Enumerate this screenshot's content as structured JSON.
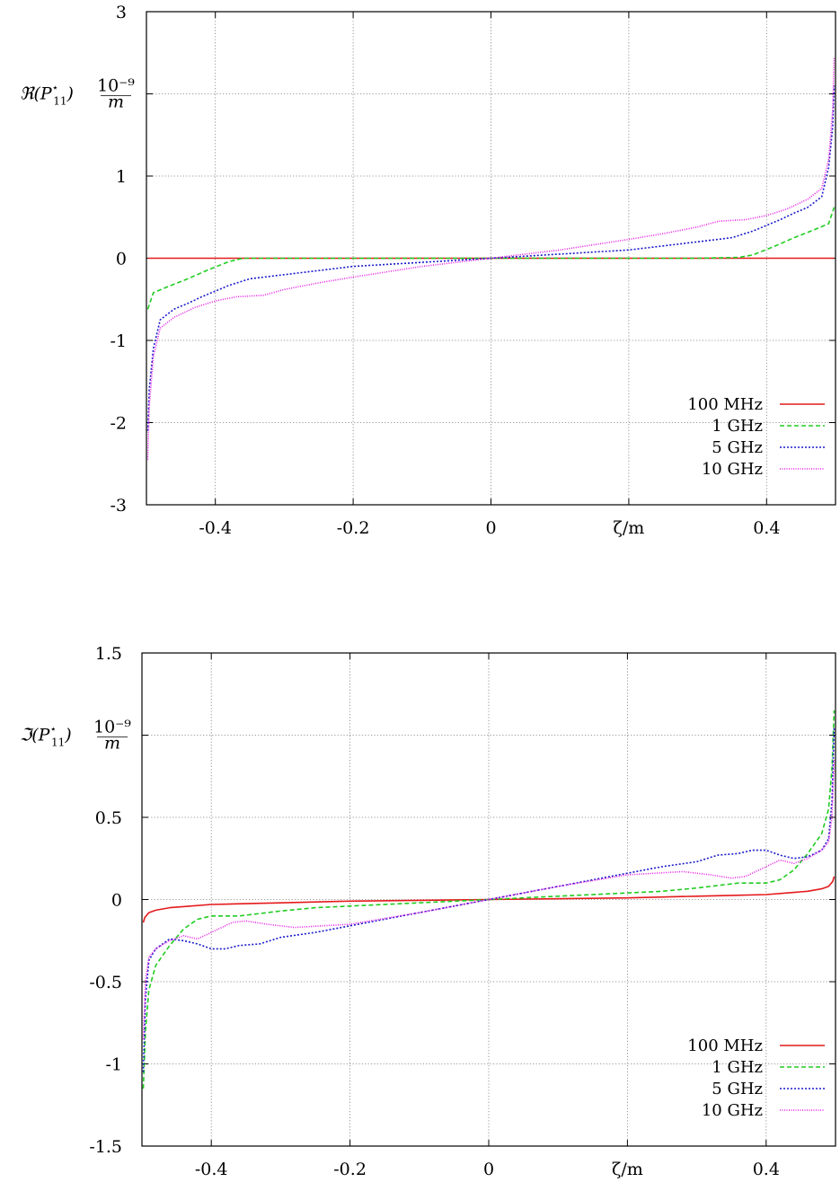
{
  "chart_data": [
    {
      "type": "line",
      "ylabel_main": "ℜ(P",
      "ylabel_sub": "11",
      "ylabel_sup": "⋆",
      "ylabel_close": ")",
      "ylabel_num": "10⁻⁹",
      "ylabel_den": "m",
      "xlim": [
        -0.5,
        0.5
      ],
      "ylim": [
        -3,
        3
      ],
      "grid": true,
      "legend_position": "bottom-right",
      "x_ticks": [
        {
          "value": -0.4,
          "label": "-0.4"
        },
        {
          "value": -0.2,
          "label": "-0.2"
        },
        {
          "value": 0,
          "label": "0"
        },
        {
          "value": 0.2,
          "label": "ζ/m"
        },
        {
          "value": 0.4,
          "label": "0.4"
        }
      ],
      "y_ticks": [
        {
          "value": -3,
          "label": "-3"
        },
        {
          "value": -2,
          "label": "-2"
        },
        {
          "value": -1,
          "label": "-1"
        },
        {
          "value": 0,
          "label": "0"
        },
        {
          "value": 1,
          "label": "1"
        },
        {
          "value": 2,
          "label": ""
        },
        {
          "value": 3,
          "label": "3"
        }
      ],
      "series": [
        {
          "name": "100 MHz",
          "color": "#e41a1c",
          "dash": "",
          "x": [
            -0.498,
            0,
            0.498
          ],
          "y": [
            0,
            0,
            0
          ]
        },
        {
          "name": "1 GHz",
          "color": "#22cc22",
          "dash": "5 3",
          "x": [
            -0.498,
            -0.49,
            -0.47,
            -0.44,
            -0.41,
            -0.38,
            -0.36,
            -0.3,
            -0.2,
            0,
            0.2,
            0.3,
            0.36,
            0.38,
            0.41,
            0.44,
            0.47,
            0.49,
            0.498
          ],
          "y": [
            -0.62,
            -0.42,
            -0.35,
            -0.25,
            -0.14,
            -0.04,
            0,
            0,
            0,
            0,
            0,
            0,
            0.01,
            0.04,
            0.14,
            0.25,
            0.35,
            0.42,
            0.62
          ]
        },
        {
          "name": "5 GHz",
          "color": "#1a1acc",
          "dash": "2 2",
          "x": [
            -0.498,
            -0.496,
            -0.49,
            -0.48,
            -0.46,
            -0.44,
            -0.42,
            -0.4,
            -0.38,
            -0.35,
            -0.3,
            -0.25,
            -0.2,
            -0.1,
            0,
            0.1,
            0.2,
            0.25,
            0.3,
            0.35,
            0.38,
            0.4,
            0.42,
            0.44,
            0.46,
            0.48,
            0.49,
            0.496,
            0.498
          ],
          "y": [
            -2.1,
            -1.6,
            -1.1,
            -0.75,
            -0.62,
            -0.55,
            -0.47,
            -0.4,
            -0.33,
            -0.25,
            -0.2,
            -0.15,
            -0.1,
            -0.05,
            0,
            0.05,
            0.1,
            0.15,
            0.2,
            0.25,
            0.33,
            0.4,
            0.47,
            0.55,
            0.62,
            0.75,
            1.1,
            1.6,
            2.1
          ]
        },
        {
          "name": "10 GHz",
          "color": "#e61ee6",
          "dash": "1 1.5",
          "x": [
            -0.498,
            -0.496,
            -0.49,
            -0.48,
            -0.46,
            -0.43,
            -0.4,
            -0.37,
            -0.33,
            -0.3,
            -0.25,
            -0.2,
            -0.1,
            0,
            0.1,
            0.2,
            0.25,
            0.3,
            0.33,
            0.37,
            0.4,
            0.43,
            0.46,
            0.48,
            0.49,
            0.496,
            0.498
          ],
          "y": [
            -2.45,
            -1.8,
            -1.2,
            -0.85,
            -0.72,
            -0.6,
            -0.52,
            -0.47,
            -0.45,
            -0.38,
            -0.3,
            -0.23,
            -0.1,
            0,
            0.1,
            0.23,
            0.3,
            0.38,
            0.45,
            0.47,
            0.52,
            0.6,
            0.72,
            0.85,
            1.2,
            1.8,
            2.45
          ]
        }
      ]
    },
    {
      "type": "line",
      "ylabel_main": "ℑ(P",
      "ylabel_sub": "11",
      "ylabel_sup": "⋆",
      "ylabel_close": ")",
      "ylabel_num": "10⁻⁹",
      "ylabel_den": "m",
      "xlim": [
        -0.5,
        0.5
      ],
      "ylim": [
        -1.5,
        1.5
      ],
      "grid": true,
      "legend_position": "bottom-right",
      "x_ticks": [
        {
          "value": -0.4,
          "label": "-0.4"
        },
        {
          "value": -0.2,
          "label": "-0.2"
        },
        {
          "value": 0,
          "label": "0"
        },
        {
          "value": 0.2,
          "label": "ζ/m"
        },
        {
          "value": 0.4,
          "label": "0.4"
        }
      ],
      "y_ticks": [
        {
          "value": -1.5,
          "label": "-1.5"
        },
        {
          "value": -1,
          "label": "-1"
        },
        {
          "value": -0.5,
          "label": "-0.5"
        },
        {
          "value": 0,
          "label": "0"
        },
        {
          "value": 0.5,
          "label": "0.5"
        },
        {
          "value": 1,
          "label": ""
        },
        {
          "value": 1.5,
          "label": "1.5"
        }
      ],
      "series": [
        {
          "name": "100 MHz",
          "color": "#e41a1c",
          "dash": "",
          "x": [
            -0.498,
            -0.496,
            -0.49,
            -0.48,
            -0.46,
            -0.43,
            -0.4,
            -0.35,
            -0.3,
            -0.2,
            0,
            0.2,
            0.3,
            0.35,
            0.4,
            0.43,
            0.46,
            0.48,
            0.49,
            0.496,
            0.498
          ],
          "y": [
            -0.14,
            -0.11,
            -0.08,
            -0.065,
            -0.05,
            -0.04,
            -0.03,
            -0.025,
            -0.02,
            -0.01,
            0,
            0.01,
            0.02,
            0.025,
            0.03,
            0.04,
            0.05,
            0.065,
            0.08,
            0.11,
            0.14
          ]
        },
        {
          "name": "1 GHz",
          "color": "#22cc22",
          "dash": "5 3",
          "x": [
            -0.498,
            -0.495,
            -0.49,
            -0.48,
            -0.46,
            -0.44,
            -0.42,
            -0.4,
            -0.38,
            -0.36,
            -0.34,
            -0.3,
            -0.25,
            -0.2,
            -0.1,
            0,
            0.1,
            0.2,
            0.25,
            0.3,
            0.34,
            0.36,
            0.38,
            0.4,
            0.42,
            0.44,
            0.46,
            0.48,
            0.49,
            0.495,
            0.498
          ],
          "y": [
            -1.15,
            -0.8,
            -0.55,
            -0.4,
            -0.28,
            -0.18,
            -0.12,
            -0.1,
            -0.1,
            -0.1,
            -0.09,
            -0.07,
            -0.05,
            -0.04,
            -0.02,
            0,
            0.02,
            0.04,
            0.05,
            0.07,
            0.09,
            0.1,
            0.1,
            0.1,
            0.12,
            0.18,
            0.28,
            0.4,
            0.55,
            0.8,
            1.15
          ]
        },
        {
          "name": "5 GHz",
          "color": "#1a1acc",
          "dash": "2 2",
          "x": [
            -0.498,
            -0.495,
            -0.49,
            -0.48,
            -0.46,
            -0.44,
            -0.42,
            -0.4,
            -0.38,
            -0.36,
            -0.33,
            -0.3,
            -0.25,
            -0.2,
            -0.1,
            0,
            0.1,
            0.2,
            0.25,
            0.3,
            0.33,
            0.36,
            0.38,
            0.4,
            0.42,
            0.44,
            0.46,
            0.48,
            0.49,
            0.495,
            0.498
          ],
          "y": [
            -1.05,
            -0.6,
            -0.37,
            -0.3,
            -0.24,
            -0.25,
            -0.27,
            -0.3,
            -0.3,
            -0.28,
            -0.27,
            -0.23,
            -0.2,
            -0.16,
            -0.08,
            0,
            0.08,
            0.16,
            0.2,
            0.23,
            0.27,
            0.28,
            0.3,
            0.3,
            0.27,
            0.25,
            0.26,
            0.3,
            0.37,
            0.6,
            1.05
          ]
        },
        {
          "name": "10 GHz",
          "color": "#e61ee6",
          "dash": "1 1.5",
          "x": [
            -0.498,
            -0.495,
            -0.49,
            -0.48,
            -0.46,
            -0.44,
            -0.42,
            -0.4,
            -0.37,
            -0.35,
            -0.32,
            -0.28,
            -0.24,
            -0.2,
            -0.1,
            0,
            0.1,
            0.2,
            0.24,
            0.28,
            0.32,
            0.35,
            0.37,
            0.4,
            0.42,
            0.44,
            0.46,
            0.48,
            0.49,
            0.495,
            0.498
          ],
          "y": [
            -0.85,
            -0.5,
            -0.35,
            -0.3,
            -0.25,
            -0.22,
            -0.24,
            -0.2,
            -0.14,
            -0.13,
            -0.15,
            -0.17,
            -0.16,
            -0.15,
            -0.08,
            0,
            0.08,
            0.15,
            0.16,
            0.17,
            0.15,
            0.13,
            0.14,
            0.2,
            0.24,
            0.22,
            0.25,
            0.3,
            0.35,
            0.5,
            0.85
          ]
        }
      ]
    }
  ]
}
